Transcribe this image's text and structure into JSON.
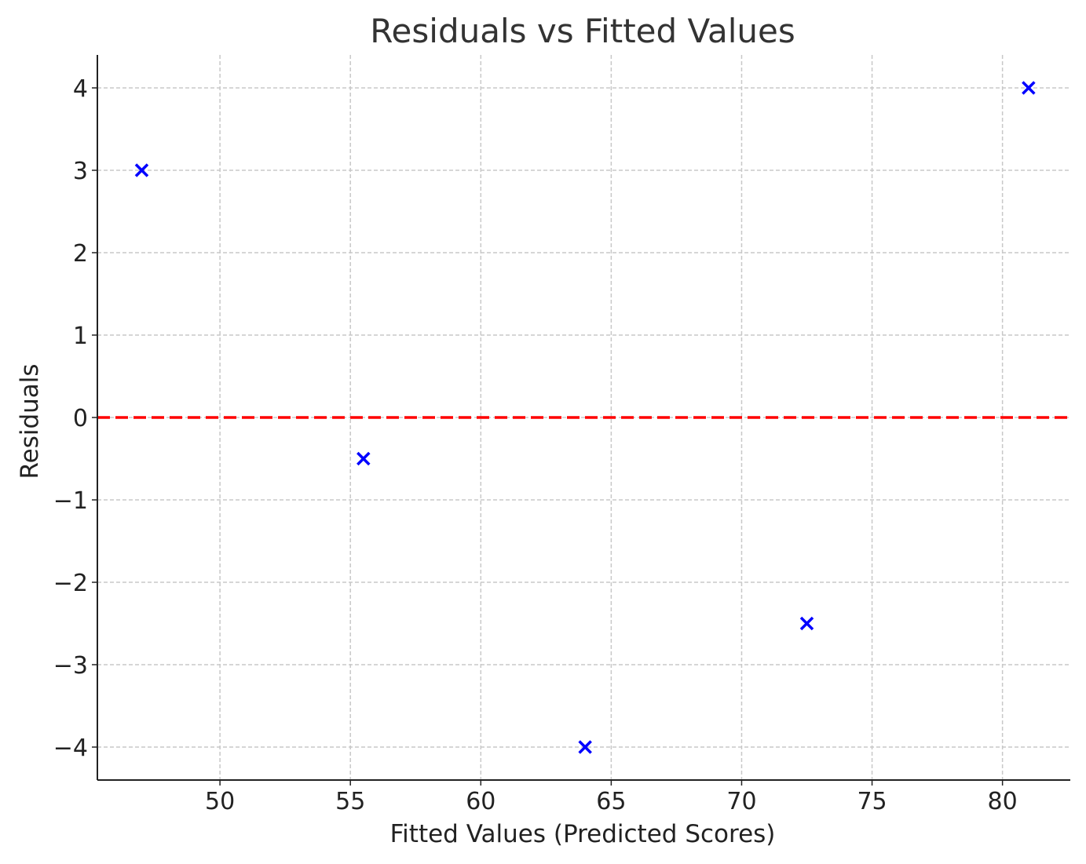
{
  "chart_data": {
    "type": "scatter",
    "title": "Residuals vs Fitted Values",
    "xlabel": "Fitted Values (Predicted Scores)",
    "ylabel": "Residuals",
    "xlim": [
      45.3,
      82.6
    ],
    "ylim": [
      -4.4,
      4.4
    ],
    "xticks": [
      50,
      55,
      60,
      65,
      70,
      75,
      80
    ],
    "yticks": [
      4,
      3,
      2,
      1,
      0,
      -1,
      -2,
      -3,
      -4
    ],
    "ytick_labels": [
      "4",
      "3",
      "2",
      "1",
      "0",
      "−1",
      "−2",
      "−3",
      "−4"
    ],
    "grid": true,
    "marker": "x",
    "reference_line": {
      "y": 0,
      "style": "dashed",
      "color": "#ff0000"
    },
    "series": [
      {
        "color": "#0000ff",
        "x": [
          47,
          55.5,
          64,
          72.5,
          81
        ],
        "y": [
          3,
          -0.5,
          -4,
          -2.5,
          4
        ]
      }
    ]
  }
}
